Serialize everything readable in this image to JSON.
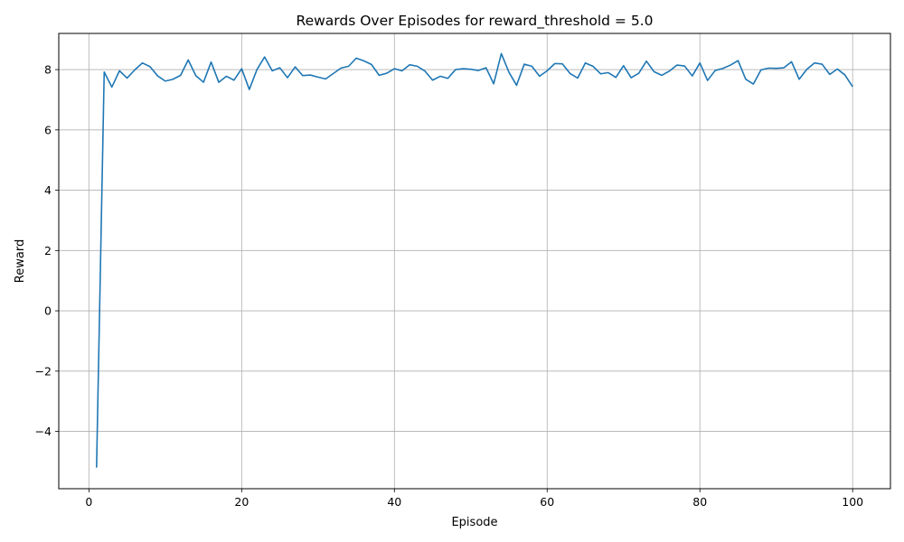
{
  "chart_data": {
    "type": "line",
    "title": "Rewards Over Episodes for reward_threshold = 5.0",
    "xlabel": "Episode",
    "ylabel": "Reward",
    "xlim": [
      -3.95,
      104.95
    ],
    "ylim": [
      -5.9,
      9.2
    ],
    "xticks": [
      0,
      20,
      40,
      60,
      80,
      100
    ],
    "yticks": [
      -4,
      -2,
      0,
      2,
      4,
      6,
      8
    ],
    "grid": true,
    "series_color": "#1f77b4",
    "series": [
      {
        "x": [
          1,
          2,
          3,
          4,
          5,
          6,
          7,
          8,
          9,
          10,
          11,
          12,
          13,
          14,
          15,
          16,
          17,
          18,
          19,
          20,
          21,
          22,
          23,
          24,
          25,
          26,
          27,
          28,
          29,
          30,
          31,
          32,
          33,
          34,
          35,
          36,
          37,
          38,
          39,
          40,
          41,
          42,
          43,
          44,
          45,
          46,
          47,
          48,
          49,
          50,
          51,
          52,
          53,
          54,
          55,
          56,
          57,
          58,
          59,
          60,
          61,
          62,
          63,
          64,
          65,
          66,
          67,
          68,
          69,
          70,
          71,
          72,
          73,
          74,
          75,
          76,
          77,
          78,
          79,
          80,
          81,
          82,
          83,
          84,
          85,
          86,
          87,
          88,
          89,
          90,
          91,
          92,
          93,
          94,
          95,
          96,
          97,
          98,
          99,
          100
        ],
        "values": [
          -5.2,
          7.92,
          7.42,
          7.96,
          7.72,
          7.99,
          8.22,
          8.1,
          7.79,
          7.62,
          7.68,
          7.81,
          8.32,
          7.8,
          7.58,
          8.25,
          7.58,
          7.78,
          7.65,
          8.03,
          7.34,
          8.0,
          8.42,
          7.96,
          8.06,
          7.73,
          8.09,
          7.8,
          7.82,
          7.75,
          7.69,
          7.87,
          8.05,
          8.11,
          8.38,
          8.29,
          8.17,
          7.81,
          7.88,
          8.03,
          7.96,
          8.16,
          8.11,
          7.95,
          7.65,
          7.78,
          7.71,
          8.0,
          8.03,
          8.01,
          7.97,
          8.06,
          7.53,
          8.53,
          7.91,
          7.48,
          8.18,
          8.11,
          7.78,
          7.96,
          8.2,
          8.19,
          7.87,
          7.72,
          8.22,
          8.11,
          7.86,
          7.9,
          7.74,
          8.13,
          7.73,
          7.88,
          8.28,
          7.93,
          7.81,
          7.95,
          8.15,
          8.12,
          7.79,
          8.22,
          7.64,
          7.97,
          8.04,
          8.15,
          8.3,
          7.68,
          7.52,
          7.99,
          8.05,
          8.04,
          8.06,
          8.26,
          7.68,
          8.01,
          8.22,
          8.18,
          7.84,
          8.02,
          7.82,
          7.43
        ]
      }
    ]
  }
}
